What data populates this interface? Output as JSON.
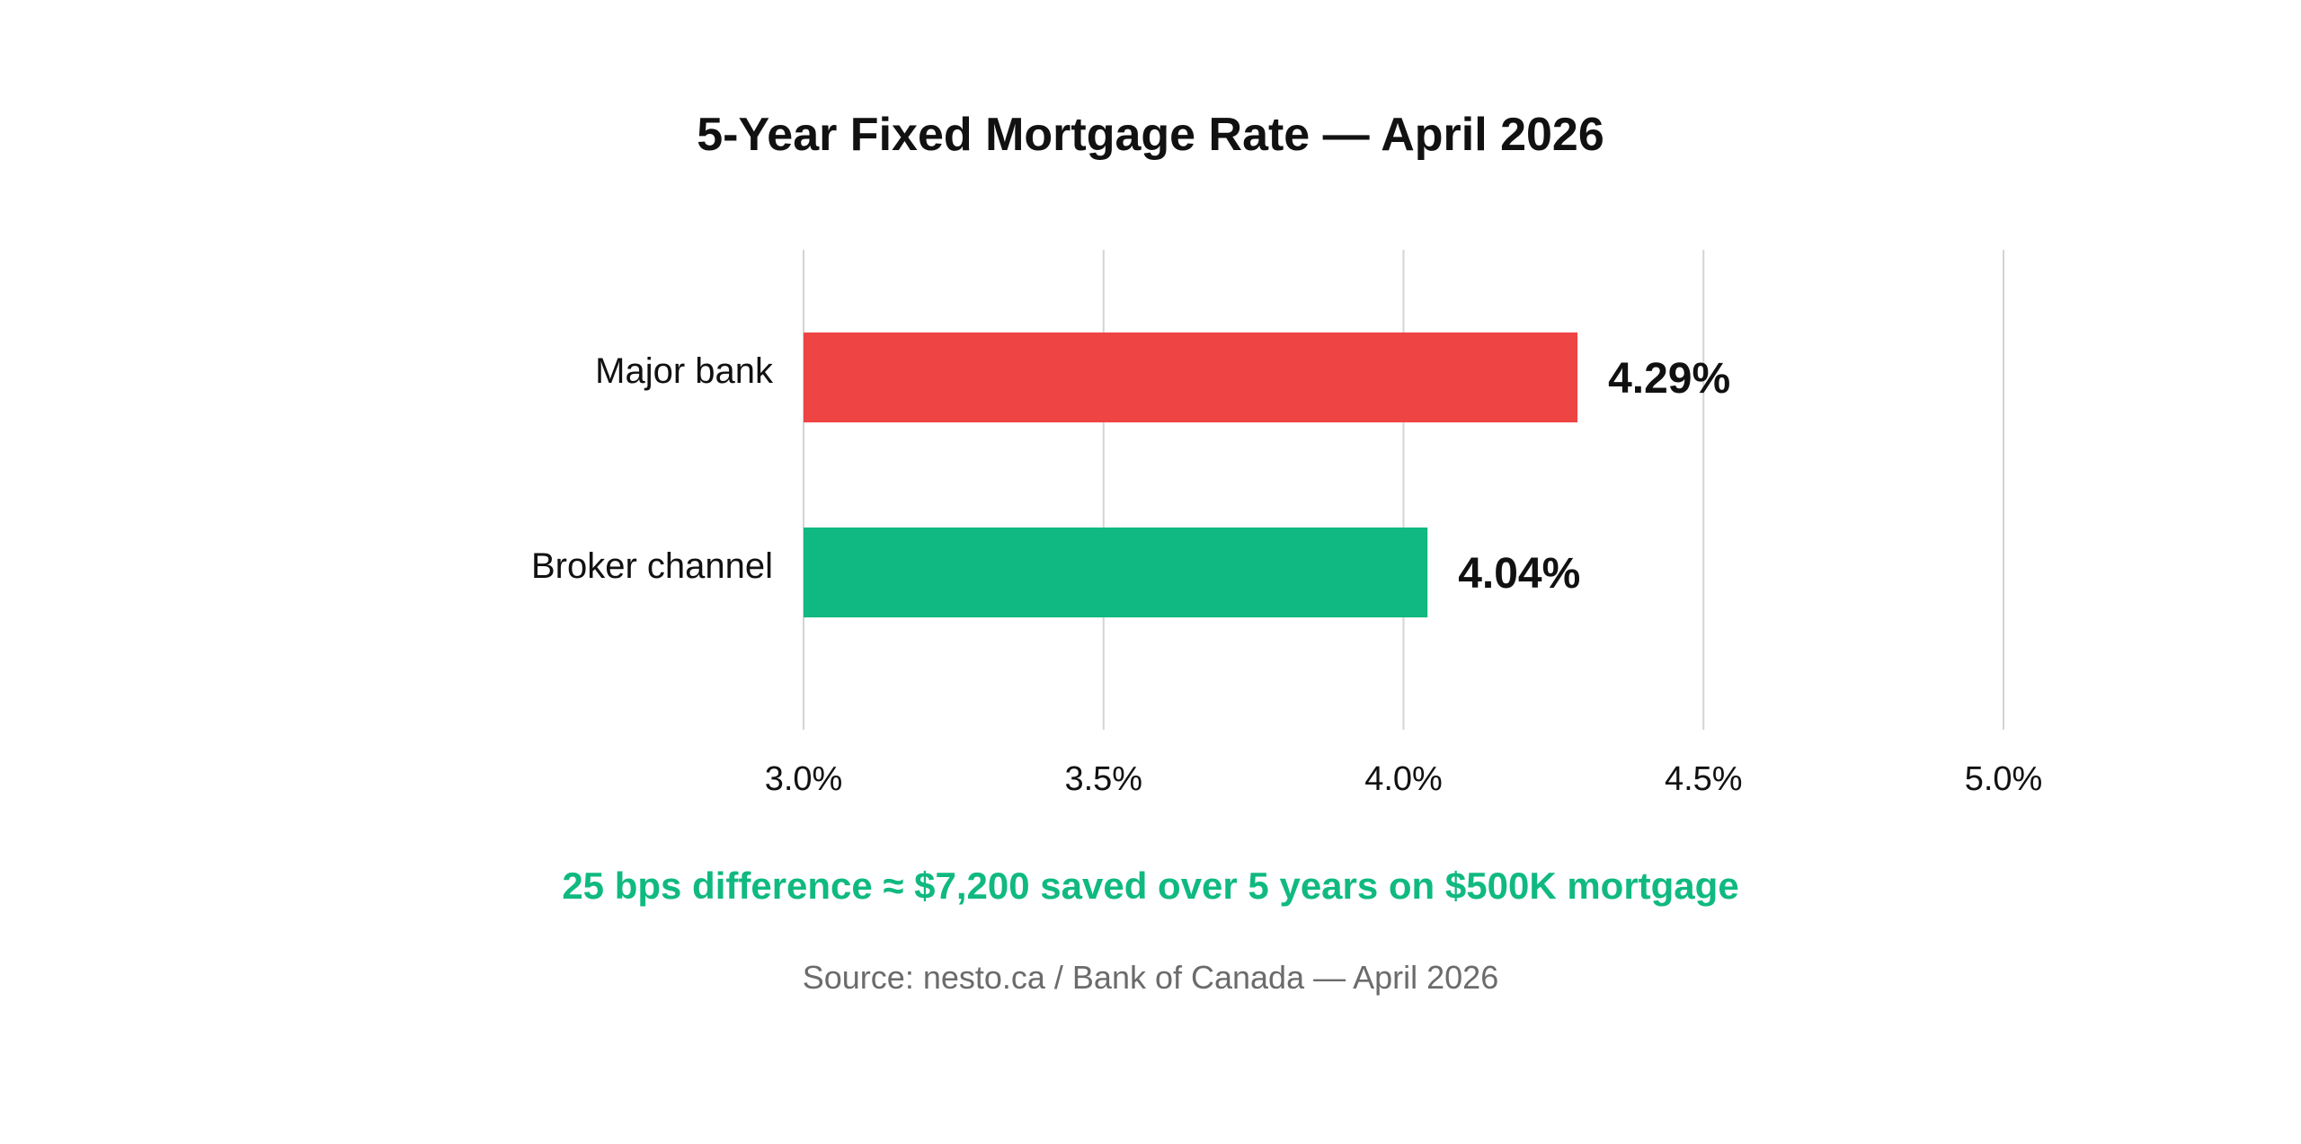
{
  "chart_data": {
    "type": "bar",
    "orientation": "horizontal",
    "title": "5-Year Fixed Mortgage Rate — April 2026",
    "categories": [
      "Major bank",
      "Broker channel"
    ],
    "values": [
      4.29,
      4.04
    ],
    "value_labels": [
      "4.29%",
      "4.04%"
    ],
    "colors": [
      "#ef4444",
      "#10b981"
    ],
    "xlim": [
      3.0,
      5.0
    ],
    "x_ticks": [
      3.0,
      3.5,
      4.0,
      4.5,
      5.0
    ],
    "x_tick_labels": [
      "3.0%",
      "3.5%",
      "4.0%",
      "4.5%",
      "5.0%"
    ],
    "grid": "vertical",
    "legend": "none"
  },
  "annotation": {
    "text": "25 bps difference ≈ $7,200 saved over 5 years on $500K mortgage",
    "color": "#10b981"
  },
  "source": "Source: nesto.ca / Bank of Canada — April 2026"
}
